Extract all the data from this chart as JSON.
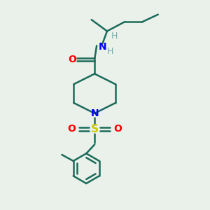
{
  "bg_color": "#eaf0ea",
  "bond_color": "#1a6b5a",
  "N_color": "#0000ff",
  "O_color": "#ff0000",
  "S_color": "#cccc00",
  "H_color": "#7aadad",
  "line_width": 1.8,
  "font_size": 10,
  "xlim": [
    0,
    10
  ],
  "ylim": [
    0,
    10
  ]
}
